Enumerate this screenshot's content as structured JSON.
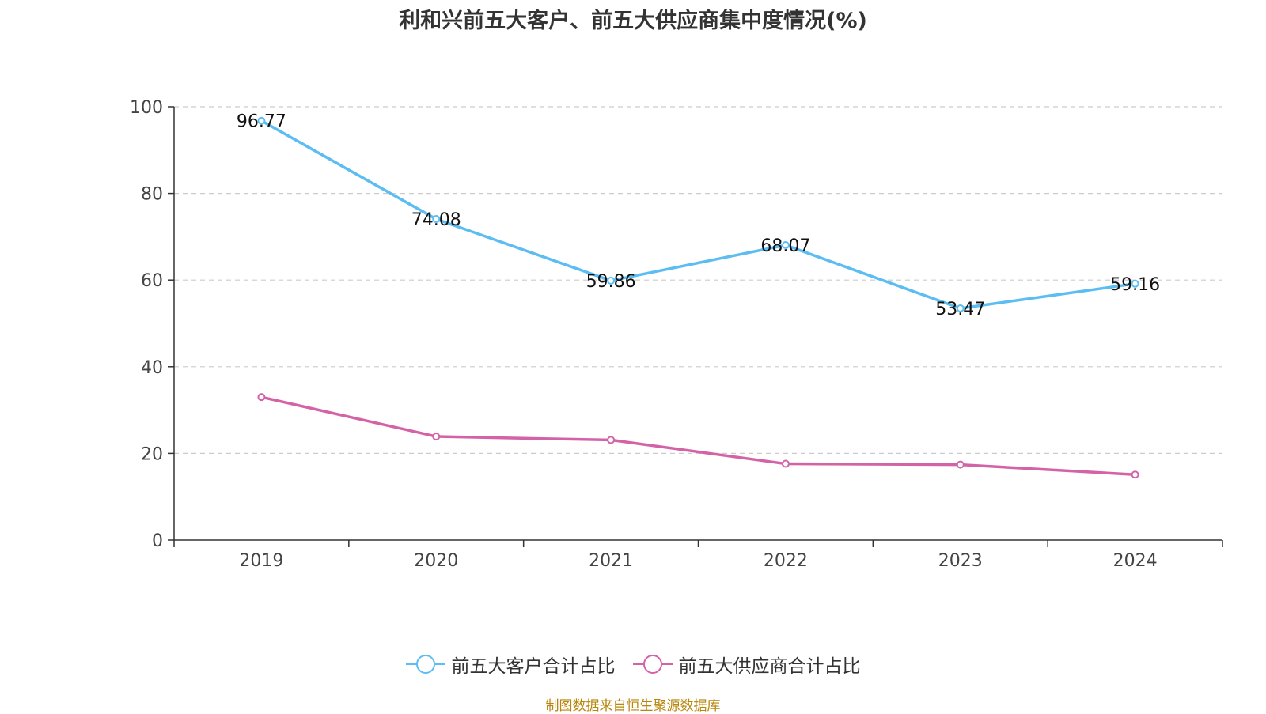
{
  "chart_data": {
    "type": "line",
    "title": "利和兴前五大客户、前五大供应商集中度情况(%)",
    "categories": [
      "2019",
      "2020",
      "2021",
      "2022",
      "2023",
      "2024"
    ],
    "series": [
      {
        "name": "前五大客户合计占比",
        "values": [
          96.77,
          74.08,
          59.86,
          68.07,
          53.47,
          59.16
        ],
        "color": "#5bbdf2",
        "labels_shown": true
      },
      {
        "name": "前五大供应商合计占比",
        "values": [
          33.0,
          23.9,
          23.1,
          17.6,
          17.4,
          15.1
        ],
        "color": "#d462a7",
        "labels_shown": false
      }
    ],
    "ylim": [
      0,
      100
    ],
    "yticks": [
      "0",
      "20",
      "40",
      "60",
      "80",
      "100"
    ],
    "grid": true,
    "legend_position": "bottom"
  },
  "source": "制图数据来自恒生聚源数据库"
}
